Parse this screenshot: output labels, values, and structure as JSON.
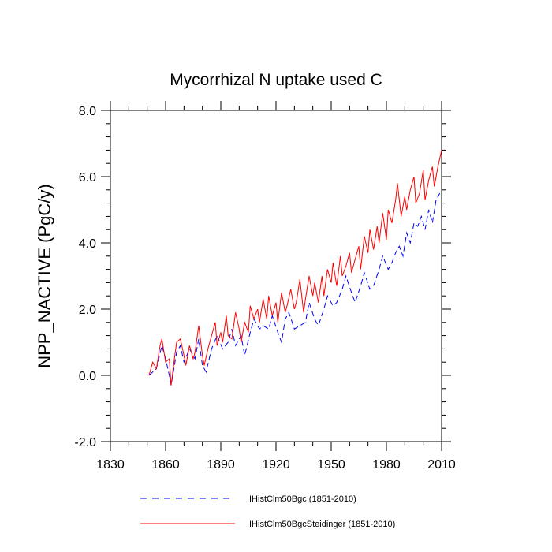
{
  "chart_data": {
    "type": "line",
    "title": "Mycorrhizal N uptake used C",
    "ylabel": "NPP_NACTIVE  (PgC/y)",
    "xlabel": "",
    "xlim": [
      1830,
      2010
    ],
    "ylim": [
      -2.0,
      8.0
    ],
    "x_ticks": [
      1830,
      1860,
      1890,
      1920,
      1950,
      1980,
      2010
    ],
    "y_ticks": [
      "-2.0",
      "0.0",
      "2.0",
      "4.0",
      "6.0",
      "8.0"
    ],
    "y_tick_values": [
      -2.0,
      0.0,
      2.0,
      4.0,
      6.0,
      8.0
    ],
    "grid": false,
    "legend_placement": "bottom",
    "series": [
      {
        "name": "IHistClm50Bgc (1851-2010)",
        "color": "#0000ff",
        "style": "dashed",
        "x": [
          1851,
          1855,
          1858,
          1860,
          1862,
          1863,
          1866,
          1868,
          1870,
          1873,
          1876,
          1878,
          1880,
          1882,
          1885,
          1888,
          1891,
          1894,
          1896,
          1898,
          1901,
          1903,
          1906,
          1908,
          1911,
          1913,
          1916,
          1918,
          1921,
          1923,
          1925,
          1927,
          1930,
          1933,
          1936,
          1938,
          1941,
          1943,
          1946,
          1948,
          1951,
          1953,
          1956,
          1958,
          1961,
          1963,
          1966,
          1968,
          1971,
          1973,
          1976,
          1978,
          1981,
          1983,
          1985,
          1987,
          1989,
          1991,
          1993,
          1995,
          1997,
          1999,
          2001,
          2003,
          2005,
          2007,
          2009
        ],
        "values": [
          0.0,
          0.2,
          0.9,
          0.5,
          0.0,
          -0.3,
          0.7,
          0.9,
          0.4,
          0.8,
          0.5,
          1.1,
          0.3,
          0.1,
          0.8,
          1.2,
          0.8,
          1.0,
          1.4,
          0.9,
          1.2,
          0.6,
          1.3,
          1.7,
          1.4,
          1.5,
          1.4,
          1.8,
          1.3,
          1.0,
          1.7,
          1.9,
          1.4,
          1.5,
          1.6,
          2.2,
          1.7,
          1.5,
          2.0,
          2.4,
          2.1,
          2.2,
          2.6,
          3.0,
          2.5,
          2.2,
          2.7,
          3.1,
          2.6,
          2.7,
          3.2,
          3.6,
          3.2,
          3.4,
          3.7,
          3.9,
          3.6,
          4.3,
          4.0,
          4.6,
          4.5,
          4.8,
          4.4,
          5.0,
          4.6,
          5.3,
          5.5
        ]
      },
      {
        "name": "IHistClm50BgcSteidinger (1851-2010)",
        "color": "#ff0000",
        "style": "solid",
        "x": [
          1851,
          1853,
          1855,
          1857,
          1858,
          1860,
          1862,
          1863,
          1865,
          1866,
          1868,
          1870,
          1871,
          1873,
          1875,
          1876,
          1878,
          1880,
          1881,
          1883,
          1885,
          1887,
          1888,
          1890,
          1891,
          1893,
          1894,
          1896,
          1898,
          1900,
          1901,
          1903,
          1905,
          1906,
          1908,
          1910,
          1911,
          1913,
          1915,
          1916,
          1918,
          1920,
          1921,
          1923,
          1925,
          1926,
          1928,
          1930,
          1931,
          1933,
          1935,
          1936,
          1938,
          1940,
          1941,
          1943,
          1945,
          1946,
          1948,
          1950,
          1951,
          1953,
          1955,
          1956,
          1958,
          1960,
          1961,
          1963,
          1965,
          1966,
          1968,
          1970,
          1971,
          1973,
          1975,
          1976,
          1978,
          1980,
          1981,
          1983,
          1985,
          1986,
          1988,
          1990,
          1991,
          1993,
          1995,
          1996,
          1998,
          2000,
          2001,
          2003,
          2005,
          2006,
          2008,
          2010
        ],
        "values": [
          0.0,
          0.4,
          0.2,
          0.9,
          1.1,
          0.4,
          0.5,
          -0.3,
          0.6,
          1.0,
          1.1,
          0.6,
          0.3,
          0.9,
          0.5,
          0.7,
          1.5,
          0.6,
          0.3,
          0.8,
          1.2,
          1.6,
          0.9,
          1.3,
          1.0,
          1.8,
          1.2,
          1.1,
          1.9,
          1.4,
          1.0,
          1.6,
          1.3,
          2.1,
          1.7,
          2.0,
          1.6,
          2.3,
          1.7,
          2.4,
          1.8,
          2.2,
          1.6,
          2.5,
          1.9,
          2.1,
          2.6,
          2.0,
          2.2,
          2.9,
          1.9,
          2.3,
          3.0,
          2.4,
          2.8,
          2.2,
          3.0,
          2.4,
          3.2,
          2.8,
          3.4,
          2.7,
          3.6,
          3.0,
          3.3,
          3.7,
          3.1,
          3.5,
          3.9,
          3.2,
          4.2,
          3.7,
          4.4,
          3.8,
          4.5,
          4.0,
          4.9,
          4.1,
          5.0,
          4.6,
          5.3,
          5.8,
          4.8,
          5.4,
          5.0,
          5.6,
          6.0,
          5.2,
          5.5,
          6.2,
          5.3,
          5.9,
          6.3,
          5.7,
          6.3,
          6.8
        ]
      }
    ]
  }
}
